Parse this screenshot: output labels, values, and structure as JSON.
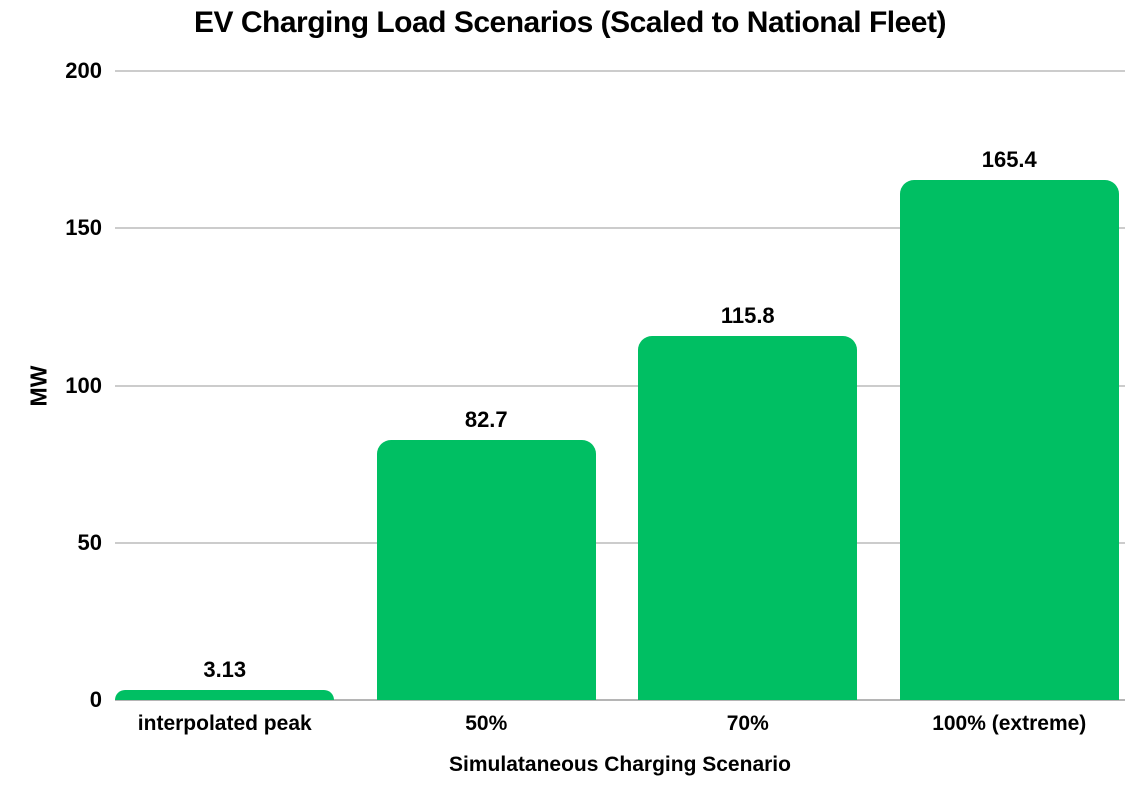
{
  "chart_data": {
    "type": "bar",
    "title": "EV Charging Load Scenarios (Scaled to National Fleet)",
    "xlabel": "Simulataneous Charging Scenario",
    "ylabel": "MW",
    "categories": [
      "interpolated peak",
      "50%",
      "70%",
      "100% (extreme)"
    ],
    "values": [
      3.13,
      82.7,
      115.8,
      165.4
    ],
    "value_labels": [
      "3.13",
      "82.7",
      "115.8",
      "165.4"
    ],
    "ylim": [
      0,
      200
    ],
    "yticks": [
      0,
      50,
      100,
      150,
      200
    ],
    "grid": true,
    "legend_position": "none",
    "colors": {
      "bar": "#00bf63",
      "gridline": "#cccccc",
      "axis_line": "#b5b5b5",
      "text": "#000000",
      "background": "#ffffff"
    }
  }
}
